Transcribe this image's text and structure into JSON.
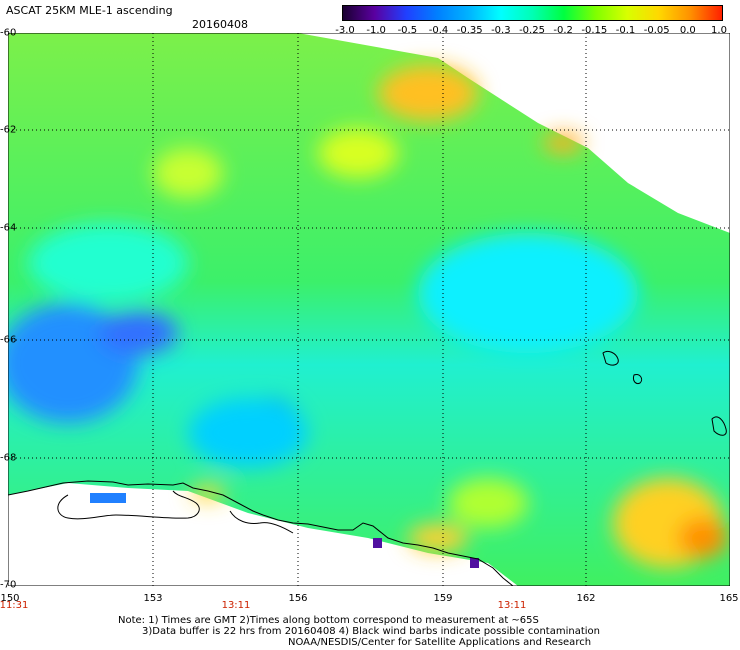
{
  "header": {
    "title": "ASCAT 25KM MLE-1 ascending",
    "date": "20160408"
  },
  "colorbar": {
    "labels": [
      "-3.0",
      "-1.0",
      "-0.5",
      "-0.4",
      "-0.35",
      "-0.3",
      "-0.25",
      "-0.2",
      "-0.15",
      "-0.1",
      "-0.05",
      "0.0",
      "1.0"
    ],
    "colors": [
      "#1a0030",
      "#5a00a0",
      "#2040ff",
      "#0080ff",
      "#00b4ff",
      "#00ffff",
      "#00ffb4",
      "#00ff40",
      "#80ff00",
      "#d8ff00",
      "#ffd800",
      "#ff9000",
      "#ff2000"
    ]
  },
  "axes": {
    "lat_labels": [
      "-60",
      "-62",
      "-64",
      "-66",
      "-68",
      "-70"
    ],
    "lon_labels": [
      "150",
      "153",
      "156",
      "159",
      "162",
      "165"
    ],
    "time_labels": [
      "11:31",
      "13:11",
      "13:11"
    ]
  },
  "notes": {
    "line1": "Note: 1) Times are GMT 2)Times along bottom correspond to measurement at ~65S",
    "line2": "3)Data buffer is 22 hrs from 20160408 4) Black wind barbs indicate possible contamination",
    "line3": "NOAA/NESDIS/Center for Satellite Applications and Research"
  }
}
